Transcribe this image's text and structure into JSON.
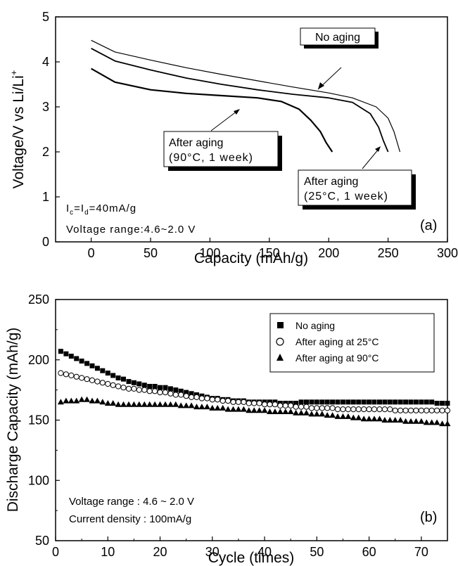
{
  "chart_data": [
    {
      "type": "line",
      "panel_label": "(a)",
      "xlabel": "Capacity (mAh/g)",
      "ylabel_main": "Voltage/V vs Li/Li",
      "ylabel_sup": "+",
      "xlim": [
        -30,
        300
      ],
      "ylim": [
        0,
        5
      ],
      "xticks": [
        0,
        50,
        100,
        150,
        200,
        250,
        300
      ],
      "yticks": [
        0,
        1,
        2,
        3,
        4,
        5
      ],
      "notes": {
        "current_I": "I",
        "current_c": "c",
        "current_eq": "=I",
        "current_d": "d",
        "current_val": "=40mA/g",
        "voltage_range": "Voltage range:4.6~2.0 V"
      },
      "series": [
        {
          "name": "No aging",
          "x": [
            0,
            20,
            50,
            80,
            110,
            140,
            170,
            200,
            220,
            240,
            250,
            255,
            260
          ],
          "y": [
            4.48,
            4.22,
            4.04,
            3.87,
            3.72,
            3.58,
            3.44,
            3.31,
            3.2,
            3.0,
            2.75,
            2.45,
            2.0
          ]
        },
        {
          "name": "After aging (25°C, 1 week)",
          "x": [
            0,
            20,
            50,
            80,
            110,
            140,
            170,
            200,
            220,
            235,
            242,
            246,
            250
          ],
          "y": [
            4.3,
            4.02,
            3.82,
            3.64,
            3.5,
            3.38,
            3.28,
            3.2,
            3.1,
            2.85,
            2.55,
            2.25,
            2.0
          ]
        },
        {
          "name": "After aging (90°C, 1 week)",
          "x": [
            0,
            20,
            50,
            80,
            110,
            140,
            160,
            175,
            185,
            193,
            198,
            203
          ],
          "y": [
            3.85,
            3.55,
            3.38,
            3.3,
            3.25,
            3.2,
            3.12,
            2.95,
            2.7,
            2.45,
            2.2,
            2.0
          ]
        }
      ],
      "callouts": [
        {
          "line1": "No aging",
          "line2": ""
        },
        {
          "line1": "After aging",
          "line2": "(90°C, 1 week)"
        },
        {
          "line1": "After aging",
          "line2": "(25°C, 1 week)"
        }
      ]
    },
    {
      "type": "scatter",
      "panel_label": "(b)",
      "xlabel": "Cycle (times)",
      "ylabel": "Discharge Capacity (mAh/g)",
      "xlim": [
        0,
        75
      ],
      "ylim": [
        50,
        250
      ],
      "xticks": [
        0,
        10,
        20,
        30,
        40,
        50,
        60,
        70
      ],
      "yticks": [
        50,
        100,
        150,
        200,
        250
      ],
      "notes": {
        "voltage_range": "Voltage range : 4.6 ~ 2.0 V",
        "current_density": "Current density : 100mA/g"
      },
      "legend_position": "top-right",
      "series": [
        {
          "name": "No aging",
          "marker": "square",
          "values": [
            207,
            205,
            203,
            201,
            199,
            197,
            195,
            193,
            191,
            189,
            187,
            185,
            184,
            182,
            181,
            180,
            179,
            178,
            178,
            177,
            177,
            176,
            175,
            174,
            173,
            172,
            171,
            170,
            169,
            168,
            168,
            167,
            167,
            166,
            166,
            166,
            165,
            165,
            165,
            165,
            165,
            165,
            164,
            164,
            164,
            164,
            165,
            165,
            165,
            165,
            165,
            165,
            165,
            165,
            165,
            165,
            165,
            165,
            165,
            165,
            165,
            165,
            165,
            165,
            165,
            165,
            165,
            165,
            165,
            165,
            165,
            165,
            164,
            164,
            164
          ]
        },
        {
          "name": "After aging at 25°C",
          "marker": "circle",
          "values": [
            189,
            188,
            187,
            186,
            185,
            184,
            183,
            182,
            181,
            180,
            179,
            178,
            177,
            176,
            176,
            175,
            175,
            174,
            174,
            173,
            173,
            172,
            171,
            171,
            170,
            169,
            169,
            168,
            168,
            167,
            167,
            166,
            166,
            165,
            165,
            165,
            164,
            164,
            164,
            163,
            163,
            163,
            162,
            162,
            162,
            161,
            161,
            161,
            160,
            160,
            160,
            160,
            160,
            159,
            159,
            159,
            159,
            159,
            159,
            159,
            159,
            159,
            159,
            159,
            158,
            158,
            158,
            158,
            158,
            158,
            158,
            158,
            158,
            158,
            158
          ]
        },
        {
          "name": "After aging at 90°C",
          "marker": "triangle",
          "values": [
            165,
            166,
            166,
            166,
            167,
            167,
            166,
            166,
            165,
            164,
            164,
            163,
            163,
            163,
            163,
            163,
            163,
            163,
            163,
            163,
            163,
            163,
            163,
            162,
            162,
            162,
            161,
            161,
            161,
            160,
            160,
            160,
            159,
            159,
            159,
            159,
            158,
            158,
            158,
            158,
            157,
            157,
            157,
            157,
            157,
            156,
            156,
            156,
            155,
            155,
            155,
            154,
            154,
            153,
            153,
            153,
            152,
            152,
            151,
            151,
            151,
            151,
            150,
            150,
            150,
            150,
            149,
            149,
            149,
            149,
            148,
            148,
            148,
            147,
            147
          ]
        }
      ]
    }
  ]
}
